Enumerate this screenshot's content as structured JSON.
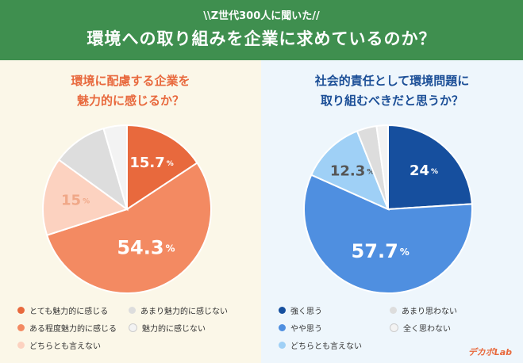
{
  "header": {
    "subtitle": "\\\\Z世代300人に聞いた//",
    "title": "環境への取り組みを企業に求めているのか？"
  },
  "chart_data": [
    {
      "type": "pie",
      "title": "環境に配慮する企業を\n魅力的に感じるか？",
      "slices": [
        {
          "name": "とても魅力的に感じる",
          "value": 15.7,
          "label": "15.7",
          "color": "#e8693d"
        },
        {
          "name": "ある程度魅力的に感じる",
          "value": 54.3,
          "label": "54.3",
          "color": "#f38a62"
        },
        {
          "name": "どちらとも言えない",
          "value": 15,
          "label": "15",
          "color": "#fcd2c0"
        },
        {
          "name": "あまり魅力的に感じない",
          "value": 10.5,
          "label": "",
          "color": "#dddddd"
        },
        {
          "name": "魅力的に感じない",
          "value": 4.5,
          "label": "",
          "color": "#f3f3f3"
        }
      ],
      "unit": "%"
    },
    {
      "type": "pie",
      "title": "社会的責任として環境問題に\n取り組むべきだと思うか？",
      "slices": [
        {
          "name": "強く思う",
          "value": 24,
          "label": "24",
          "color": "#164f9e"
        },
        {
          "name": "やや思う",
          "value": 57.7,
          "label": "57.7",
          "color": "#4f8fe0"
        },
        {
          "name": "どちらとも言えない",
          "value": 12.3,
          "label": "12.3",
          "color": "#9fd0f6"
        },
        {
          "name": "あまり思わない",
          "value": 3.8,
          "label": "",
          "color": "#dddddd"
        },
        {
          "name": "全く思わない",
          "value": 2.2,
          "label": "",
          "color": "#f3f3f3"
        }
      ],
      "unit": "%"
    }
  ],
  "legends": [
    [
      "とても魅力的に感じる",
      "あまり魅力的に感じない",
      "ある程度魅力的に感じる",
      "魅力的に感じない",
      "どちらとも言えない"
    ],
    [
      "強く思う",
      "あまり思わない",
      "やや思う",
      "全く思わない",
      "どちらとも言えない"
    ]
  ],
  "logo": "デカボLab"
}
